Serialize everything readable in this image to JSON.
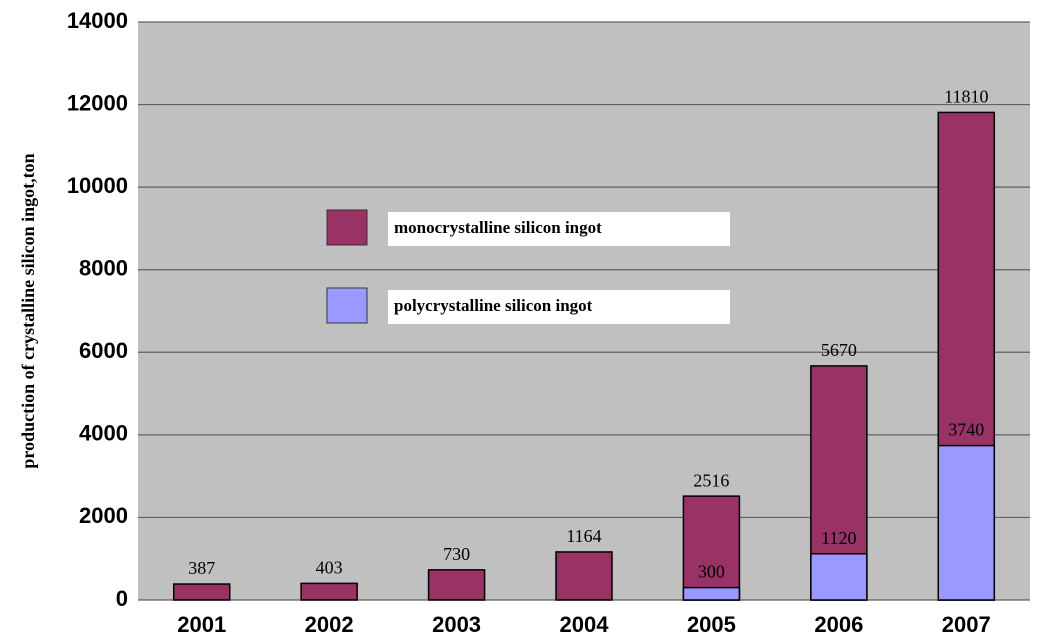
{
  "chart_data": {
    "type": "bar",
    "overlap": true,
    "y_label": "production of crystalline silicon ingot,ton",
    "categories": [
      "2001",
      "2002",
      "2003",
      "2004",
      "2005",
      "2006",
      "2007"
    ],
    "series": [
      {
        "name": "monocrystalline silicon ingot",
        "color": "#993366",
        "values": [
          387,
          403,
          730,
          1164,
          2516,
          5670,
          11810
        ]
      },
      {
        "name": "polycrystalline silicon ingot",
        "color": "#9999ff",
        "values": [
          null,
          null,
          null,
          null,
          300,
          1120,
          3740
        ]
      }
    ],
    "ylim": [
      0,
      14000
    ],
    "yticks": [
      0,
      2000,
      4000,
      6000,
      8000,
      10000,
      12000,
      14000
    ],
    "grid": true
  }
}
